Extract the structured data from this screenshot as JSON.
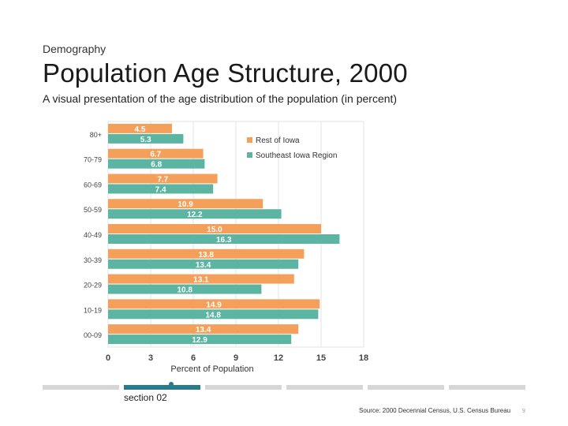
{
  "slide": {
    "kicker": "Demography",
    "title": "Population Age Structure, 2000",
    "subtitle": "A visual presentation of the age distribution of the population (in percent)",
    "section_label": "section 02",
    "source": "Source: 2000 Decennial Census, U.S. Census Bureau",
    "page_number": "9",
    "progress": {
      "segments": 6,
      "active_segment": 2
    }
  },
  "colors": {
    "rest_of_iowa": "#f5a05a",
    "southeast_iowa": "#5bb5a2",
    "grid": "#e3e3e3",
    "progress_active": "#2a7a8a",
    "progress_inactive": "#d6d6d6"
  },
  "chart_data": {
    "type": "bar",
    "orientation": "horizontal",
    "categories": [
      "80+",
      "70-79",
      "60-69",
      "50-59",
      "40-49",
      "30-39",
      "20-29",
      "10-19",
      "00-09"
    ],
    "series": [
      {
        "name": "Rest of Iowa",
        "values": [
          4.5,
          6.7,
          7.7,
          10.9,
          15.0,
          13.8,
          13.1,
          14.9,
          13.4
        ],
        "labels": [
          "4.5",
          "6.7",
          "7.7",
          "10.9",
          "15.0",
          "13.8",
          "13.1",
          "14.9",
          "13.4"
        ]
      },
      {
        "name": "Southeast Iowa Region",
        "values": [
          5.3,
          6.8,
          7.4,
          12.2,
          16.3,
          13.4,
          10.8,
          14.8,
          12.9
        ],
        "labels": [
          "5.3",
          "6.8",
          "7.4",
          "12.2",
          "16.3",
          "13.4",
          "10.8",
          "14.8",
          "12.9"
        ]
      }
    ],
    "xlabel": "Percent of Population",
    "ylabel": "",
    "xlim": [
      0,
      18
    ],
    "xticks": [
      "0",
      "3",
      "6",
      "9",
      "12",
      "15",
      "18"
    ],
    "grid": true,
    "legend_position": "top-right"
  }
}
